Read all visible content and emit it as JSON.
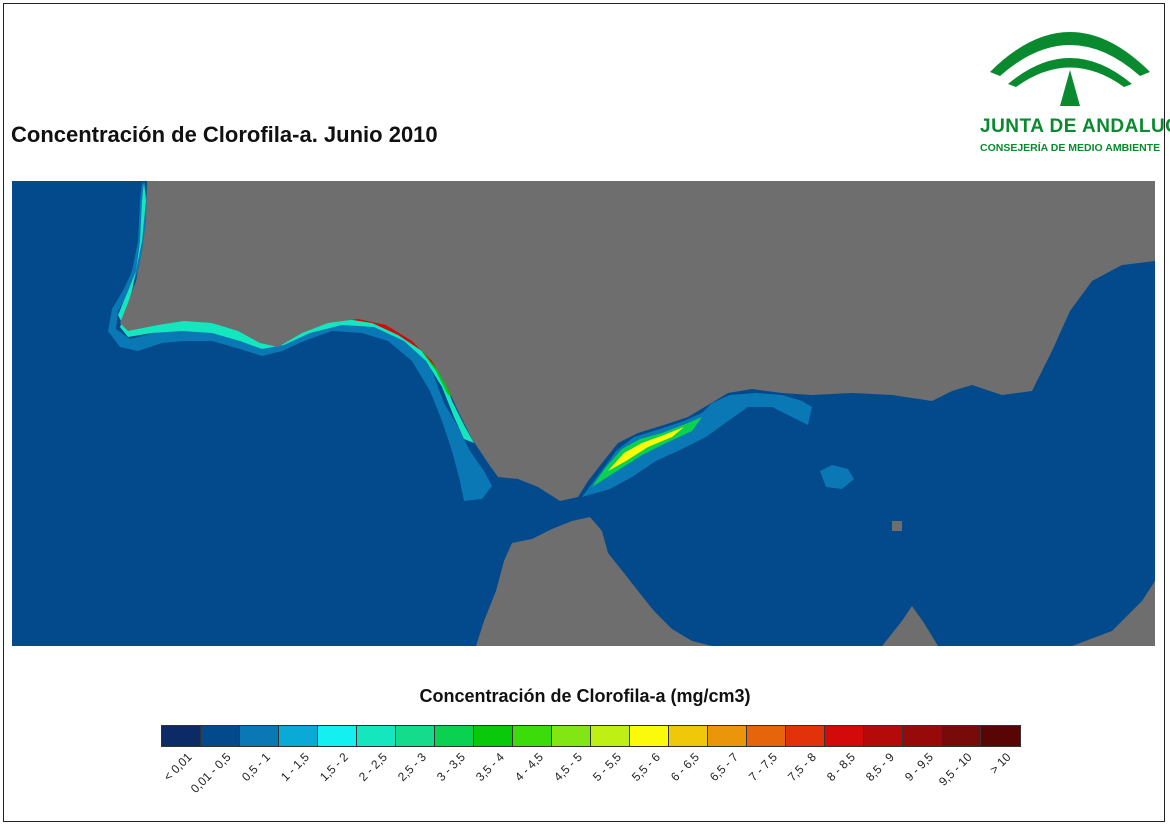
{
  "title": "Concentración de Clorofila-a. Junio 2010",
  "logo": {
    "name": "JUNTA DE ANDALUCIA",
    "department": "CONSEJERÍA DE MEDIO AMBIENTE",
    "color": "#0a8a2e"
  },
  "map": {
    "sea_color": "#034a8c",
    "land_color": "#6e6e6e"
  },
  "legend": {
    "title": "Concentración de Clorofila-a (mg/cm3)",
    "classes": [
      {
        "label": "< 0,01",
        "color": "#0b2a66"
      },
      {
        "label": "0,01 - 0,5",
        "color": "#034a8c"
      },
      {
        "label": "0,5 - 1",
        "color": "#0a78b4"
      },
      {
        "label": "1 - 1,5",
        "color": "#0aaad6"
      },
      {
        "label": "1,5 - 2",
        "color": "#14f0f0"
      },
      {
        "label": "2 - 2,5",
        "color": "#14e6be"
      },
      {
        "label": "2,5 - 3",
        "color": "#14dc8c"
      },
      {
        "label": "3 - 3,5",
        "color": "#0ad250"
      },
      {
        "label": "3,5 - 4",
        "color": "#0ac80a"
      },
      {
        "label": "4 - 4,5",
        "color": "#3cdc0a"
      },
      {
        "label": "4,5 - 5",
        "color": "#82e614"
      },
      {
        "label": "5 - 5,5",
        "color": "#bef014"
      },
      {
        "label": "5,5 - 6",
        "color": "#fafa0a"
      },
      {
        "label": "6 - 6,5",
        "color": "#f0c80a"
      },
      {
        "label": "6,5 - 7",
        "color": "#eb960a"
      },
      {
        "label": "7 - 7,5",
        "color": "#e6640a"
      },
      {
        "label": "7,5 - 8",
        "color": "#e1320a"
      },
      {
        "label": "8 - 8,5",
        "color": "#d20a0a"
      },
      {
        "label": "8,5 - 9",
        "color": "#b40a0a"
      },
      {
        "label": "9 - 9,5",
        "color": "#960a0a"
      },
      {
        "label": "9,5 - 10",
        "color": "#780a0a"
      },
      {
        "label": "> 10",
        "color": "#5a0505"
      }
    ]
  }
}
